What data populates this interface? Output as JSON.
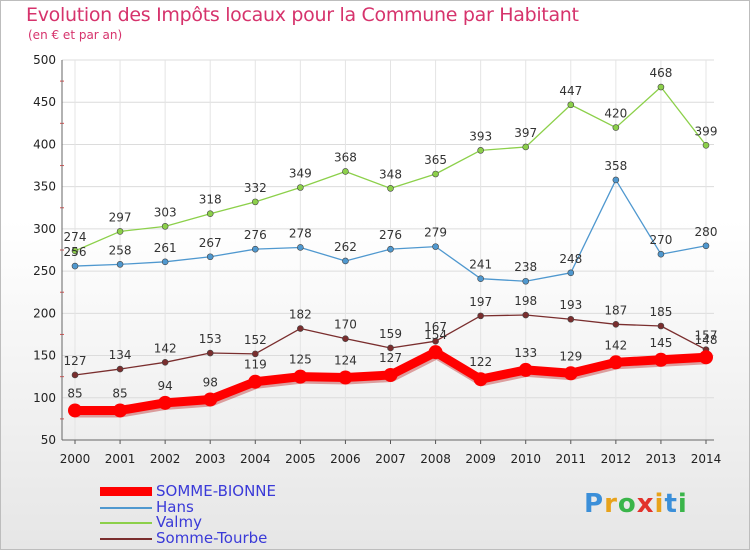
{
  "chart_data": {
    "type": "line",
    "title": "Evolution des Impôts locaux pour la Commune par Habitant",
    "subtitle": "(en € et par an)",
    "x": [
      "2000",
      "2001",
      "2002",
      "2003",
      "2004",
      "2005",
      "2006",
      "2007",
      "2008",
      "2009",
      "2010",
      "2011",
      "2012",
      "2013",
      "2014"
    ],
    "ylim": [
      50,
      500
    ],
    "yticks": [
      50,
      100,
      150,
      200,
      250,
      300,
      350,
      400,
      450,
      500
    ],
    "grid": true,
    "legend_position": "bottom-left",
    "series": [
      {
        "name": "SOMME-BIONNE",
        "color": "#ff0000",
        "values": [
          85,
          85,
          94,
          98,
          119,
          125,
          124,
          127,
          154,
          122,
          133,
          129,
          142,
          145,
          148
        ]
      },
      {
        "name": "Hans",
        "color": "#4f98cf",
        "values": [
          256,
          258,
          261,
          267,
          276,
          278,
          262,
          276,
          279,
          241,
          238,
          248,
          358,
          270,
          280
        ]
      },
      {
        "name": "Valmy",
        "color": "#8cd04a",
        "values": [
          274,
          297,
          303,
          318,
          332,
          349,
          368,
          348,
          365,
          393,
          397,
          447,
          420,
          468,
          399
        ]
      },
      {
        "name": "Somme-Tourbe",
        "color": "#7a2e2e",
        "values": [
          127,
          134,
          142,
          153,
          152,
          182,
          170,
          159,
          167,
          197,
          198,
          193,
          187,
          185,
          157
        ]
      }
    ]
  },
  "logo": {
    "letters": [
      "P",
      "r",
      "o",
      "x",
      "i",
      "t",
      "i"
    ]
  }
}
